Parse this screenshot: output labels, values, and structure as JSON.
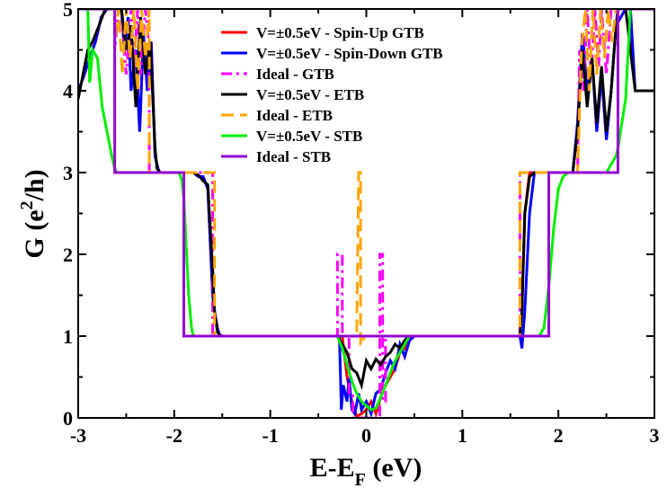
{
  "chart_data": {
    "type": "line",
    "xlabel": {
      "main": "E-E",
      "sub": "F",
      "suffix": " (eV)"
    },
    "ylabel": {
      "prefix": "G (e",
      "sup": "2",
      "suffix": "/h)"
    },
    "xlim": [
      -3,
      3
    ],
    "ylim": [
      0,
      5
    ],
    "xticks": [
      -3,
      -2,
      -1,
      0,
      1,
      2,
      3
    ],
    "yticks": [
      0,
      1,
      2,
      3,
      4,
      5
    ],
    "grid": false,
    "legend_position": "top-center",
    "series": [
      {
        "name": "V=±0.5eV - Spin-Up GTB",
        "color": "#ff0000",
        "style": "solid",
        "x": [
          -3.0,
          -2.95,
          -2.88,
          -2.82,
          -2.76,
          -2.7,
          -2.65,
          -2.55,
          -2.52,
          -2.48,
          -2.45,
          -2.4,
          -2.36,
          -2.32,
          -2.28,
          -2.24,
          -2.2,
          -2.17,
          -2.15,
          -1.9,
          -1.85,
          -1.8,
          -1.75,
          -1.7,
          -1.65,
          -1.6,
          -1.58,
          -1.55,
          -1.53,
          -1.5,
          -0.25,
          -0.2,
          -0.15,
          -0.1,
          -0.05,
          0.0,
          0.05,
          0.1,
          0.15,
          0.2,
          0.3,
          0.35,
          0.4,
          0.45,
          0.5,
          0.6,
          1.6,
          1.62,
          1.65,
          1.7,
          1.75,
          1.8,
          1.85,
          1.9,
          2.15,
          2.2,
          2.25,
          2.3,
          2.35,
          2.4,
          2.45,
          2.5,
          2.55,
          2.6,
          2.65,
          2.7,
          2.75,
          2.8,
          3.0
        ],
        "y": [
          4.0,
          4.15,
          4.4,
          4.6,
          4.9,
          5.0,
          5.0,
          5.0,
          4.5,
          4.9,
          4.0,
          4.5,
          3.5,
          4.7,
          4.0,
          4.6,
          3.2,
          3.05,
          3.0,
          3.0,
          3.0,
          3.0,
          2.95,
          2.95,
          2.8,
          1.5,
          1.3,
          1.1,
          1.02,
          1.0,
          1.0,
          0.5,
          0.2,
          0.02,
          0.05,
          0.1,
          0.2,
          0.05,
          0.25,
          0.4,
          0.6,
          0.8,
          0.85,
          0.95,
          1.0,
          1.0,
          1.0,
          1.3,
          2.5,
          3.0,
          3.0,
          3.0,
          3.0,
          3.0,
          3.0,
          3.6,
          4.7,
          4.0,
          4.4,
          3.5,
          4.2,
          3.4,
          4.0,
          4.8,
          4.9,
          5.0,
          5.0,
          4.0,
          4.0
        ]
      },
      {
        "name": "V=±0.5eV - Spin-Down GTB",
        "color": "#0000ff",
        "style": "solid",
        "x": [
          -3.0,
          -2.95,
          -2.88,
          -2.82,
          -2.76,
          -2.7,
          -2.65,
          -2.55,
          -2.52,
          -2.48,
          -2.45,
          -2.4,
          -2.36,
          -2.32,
          -2.28,
          -2.24,
          -2.2,
          -2.17,
          -2.15,
          -1.9,
          -1.85,
          -1.8,
          -1.75,
          -1.7,
          -1.65,
          -1.6,
          -1.58,
          -1.55,
          -1.53,
          -1.5,
          -0.28,
          -0.26,
          -0.24,
          -0.2,
          -0.18,
          -0.15,
          -0.12,
          -0.08,
          -0.05,
          0.0,
          0.05,
          0.1,
          0.15,
          0.2,
          0.25,
          0.3,
          0.35,
          0.4,
          0.45,
          0.5,
          1.6,
          1.62,
          1.65,
          1.7,
          1.75,
          1.8,
          1.85,
          1.9,
          2.15,
          2.2,
          2.25,
          2.3,
          2.35,
          2.4,
          2.45,
          2.5,
          2.55,
          2.6,
          2.65,
          2.7,
          2.75,
          2.8,
          3.0
        ],
        "y": [
          4.0,
          4.15,
          4.4,
          4.6,
          4.9,
          5.0,
          5.0,
          5.0,
          4.5,
          4.9,
          4.0,
          4.5,
          3.5,
          4.7,
          4.0,
          4.6,
          3.2,
          3.05,
          3.0,
          3.0,
          3.0,
          3.0,
          2.95,
          2.95,
          2.8,
          1.5,
          1.3,
          1.1,
          1.02,
          1.0,
          1.0,
          0.1,
          0.4,
          0.2,
          0.5,
          0.1,
          0.05,
          0.3,
          0.1,
          0.2,
          0.05,
          0.3,
          0.35,
          0.55,
          0.7,
          0.6,
          0.9,
          0.75,
          0.95,
          1.0,
          1.0,
          0.85,
          1.3,
          2.5,
          3.0,
          3.0,
          3.0,
          3.0,
          3.0,
          3.6,
          4.7,
          4.0,
          4.4,
          3.5,
          4.2,
          3.4,
          4.0,
          4.8,
          4.9,
          5.0,
          5.0,
          4.0,
          4.0
        ]
      },
      {
        "name": "Ideal - GTB",
        "color": "#ff00ff",
        "style": "dash-dot",
        "x": [
          -3.0,
          -2.9,
          -2.9,
          -2.62,
          -2.62,
          -2.58,
          -2.55,
          -2.5,
          -2.45,
          -2.42,
          -2.38,
          -2.35,
          -2.3,
          -2.26,
          -2.26,
          -1.6,
          -1.6,
          -0.3,
          -0.3,
          -0.25,
          -0.25,
          -0.18,
          -0.18,
          -0.14,
          -0.14,
          0.14,
          0.14,
          0.17,
          0.17,
          0.2,
          0.2,
          0.5,
          0.5,
          1.6,
          1.6,
          2.2,
          2.22,
          2.26,
          2.3,
          2.34,
          2.38,
          2.42,
          2.45,
          2.5,
          2.55,
          2.6,
          2.6,
          3.0
        ],
        "y": [
          5.0,
          5.0,
          5.0,
          5.0,
          4.5,
          5.0,
          5.0,
          4.2,
          5.0,
          4.3,
          5.0,
          4.2,
          5.0,
          4.5,
          3.0,
          3.0,
          1.0,
          1.0,
          2.0,
          2.0,
          1.0,
          1.0,
          0.3,
          0.3,
          0.0,
          0.0,
          2.0,
          2.0,
          0.2,
          0.2,
          1.0,
          1.0,
          1.0,
          1.0,
          3.0,
          3.0,
          4.5,
          4.0,
          5.0,
          4.2,
          5.0,
          4.3,
          5.0,
          4.2,
          5.0,
          5.0,
          5.0,
          5.0
        ]
      },
      {
        "name": "V=±0.5eV - ETB",
        "color": "#000000",
        "style": "solid",
        "x": [
          -3.0,
          -2.95,
          -2.9,
          -2.85,
          -2.8,
          -2.75,
          -2.72,
          -2.65,
          -2.55,
          -2.5,
          -2.45,
          -2.4,
          -2.35,
          -2.3,
          -2.25,
          -2.2,
          -2.18,
          -2.15,
          -1.9,
          -1.85,
          -1.8,
          -1.75,
          -1.7,
          -1.65,
          -1.6,
          -1.58,
          -1.55,
          -1.52,
          -0.3,
          -0.25,
          -0.2,
          -0.15,
          -0.1,
          -0.05,
          0.0,
          0.05,
          0.1,
          0.15,
          0.2,
          0.25,
          0.3,
          0.35,
          0.4,
          0.45,
          1.6,
          1.62,
          1.65,
          1.7,
          1.75,
          1.8,
          1.9,
          2.15,
          2.2,
          2.25,
          2.3,
          2.35,
          2.4,
          2.45,
          2.5,
          2.55,
          2.6,
          2.62,
          2.65,
          2.7,
          2.8,
          3.0
        ],
        "y": [
          3.9,
          4.2,
          4.5,
          4.6,
          4.75,
          4.9,
          5.0,
          5.0,
          5.0,
          4.5,
          4.8,
          3.8,
          4.9,
          4.2,
          4.6,
          3.3,
          3.05,
          3.0,
          3.0,
          3.0,
          3.0,
          2.97,
          2.9,
          2.85,
          1.8,
          1.3,
          1.05,
          1.0,
          1.0,
          0.9,
          0.8,
          0.6,
          0.55,
          0.4,
          0.7,
          0.6,
          0.72,
          0.65,
          0.75,
          0.8,
          0.9,
          0.85,
          0.95,
          1.0,
          1.0,
          1.3,
          2.5,
          2.95,
          3.0,
          3.0,
          3.0,
          3.0,
          3.5,
          4.5,
          3.8,
          4.4,
          3.6,
          4.3,
          3.5,
          4.0,
          4.8,
          5.0,
          5.0,
          5.0,
          4.0,
          4.0
        ]
      },
      {
        "name": "Ideal - ETB",
        "color": "#ffa500",
        "style": "dashed",
        "x": [
          -3.0,
          -2.96,
          -2.96,
          -2.62,
          -2.62,
          -2.58,
          -2.54,
          -2.5,
          -2.46,
          -2.42,
          -2.38,
          -2.34,
          -2.3,
          -2.26,
          -2.26,
          -1.58,
          -1.58,
          -0.1,
          -0.08,
          -0.06,
          -0.06,
          -0.03,
          -0.03,
          1.6,
          1.6,
          2.2,
          2.24,
          2.28,
          2.32,
          2.36,
          2.4,
          2.44,
          2.48,
          2.52,
          2.56,
          2.6,
          2.6,
          2.66,
          2.66,
          3.0
        ],
        "y": [
          5.0,
          5.0,
          5.0,
          5.0,
          4.6,
          5.0,
          4.2,
          5.0,
          4.4,
          5.0,
          4.0,
          5.0,
          4.4,
          5.0,
          3.0,
          3.0,
          1.0,
          1.0,
          3.0,
          3.0,
          0.9,
          0.9,
          1.0,
          1.0,
          3.0,
          3.0,
          4.5,
          5.0,
          4.0,
          5.0,
          4.2,
          5.0,
          4.4,
          5.0,
          4.6,
          5.0,
          5.0,
          5.0,
          5.0,
          5.0
        ]
      },
      {
        "name": "V=±0.5eV - STB",
        "color": "#00ee00",
        "style": "solid",
        "x": [
          -3.0,
          -2.9,
          -2.88,
          -2.85,
          -2.8,
          -2.75,
          -2.7,
          -2.65,
          -2.62,
          -2.6,
          -1.95,
          -1.92,
          -1.9,
          -1.88,
          -1.85,
          -1.82,
          -1.8,
          -0.3,
          -0.25,
          -0.2,
          -0.15,
          -0.1,
          -0.05,
          0.0,
          0.05,
          0.1,
          0.15,
          0.2,
          0.25,
          0.3,
          0.35,
          0.4,
          0.45,
          1.8,
          1.85,
          1.9,
          1.95,
          2.0,
          2.05,
          2.1,
          2.2,
          2.3,
          2.4,
          2.5,
          2.55,
          2.6,
          2.62,
          2.7,
          2.75,
          3.0
        ],
        "y": [
          5.0,
          5.0,
          4.1,
          4.5,
          4.4,
          3.8,
          3.5,
          3.2,
          3.05,
          3.0,
          3.0,
          2.9,
          2.7,
          2.2,
          1.5,
          1.1,
          1.0,
          1.0,
          0.85,
          0.65,
          0.45,
          0.3,
          0.2,
          0.15,
          0.1,
          0.12,
          0.25,
          0.4,
          0.55,
          0.7,
          0.8,
          0.9,
          1.0,
          1.0,
          1.1,
          1.6,
          2.3,
          2.8,
          2.95,
          3.0,
          3.0,
          3.0,
          3.0,
          3.0,
          3.1,
          3.2,
          3.3,
          3.9,
          5.0,
          5.0
        ]
      },
      {
        "name": "Ideal - STB",
        "color": "#9400d3",
        "style": "solid",
        "x": [
          -3.0,
          -2.62,
          -2.62,
          -1.9,
          -1.9,
          1.9,
          1.9,
          2.62,
          2.62,
          3.0
        ],
        "y": [
          5.0,
          5.0,
          3.0,
          3.0,
          1.0,
          1.0,
          3.0,
          3.0,
          5.0,
          5.0
        ]
      }
    ]
  }
}
